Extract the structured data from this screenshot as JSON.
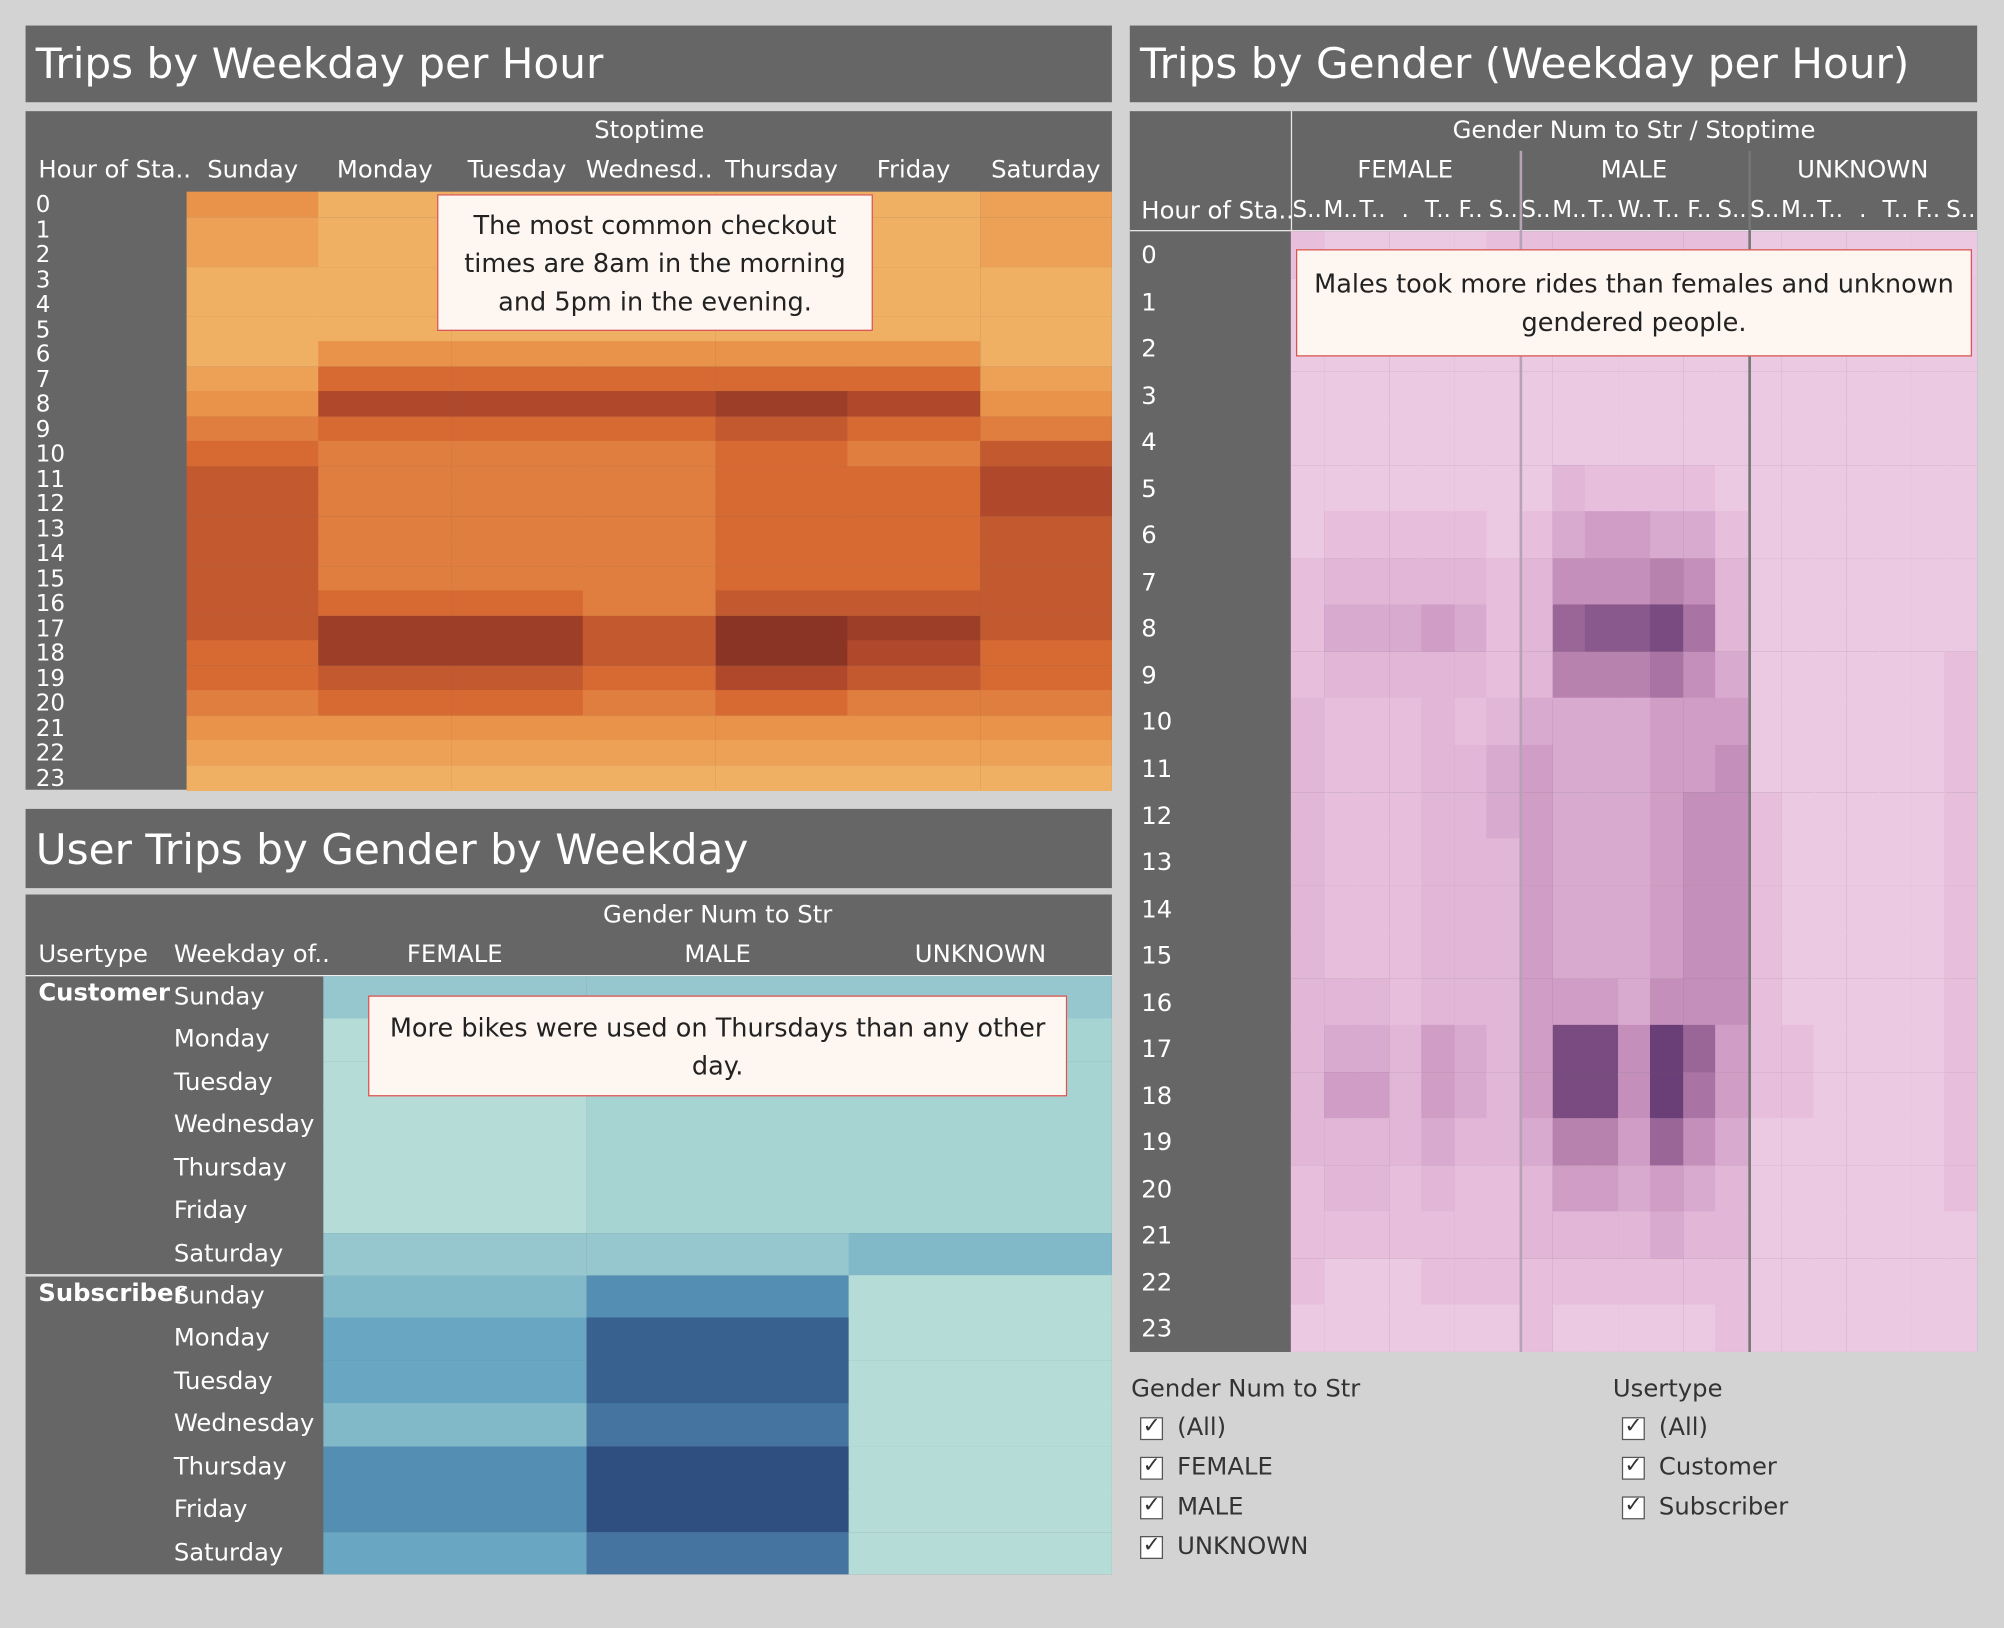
{
  "chart_data": [
    {
      "type": "heatmap",
      "title": "Trips by Weekday per Hour",
      "column_group_label": "Stoptime",
      "row_header": "Hour of Sta..",
      "columns": [
        "Sunday",
        "Monday",
        "Tuesday",
        "Wednesd..",
        "Thursday",
        "Friday",
        "Saturday"
      ],
      "rows": [
        "0",
        "1",
        "2",
        "3",
        "4",
        "5",
        "6",
        "7",
        "8",
        "9",
        "10",
        "11",
        "12",
        "13",
        "14",
        "15",
        "16",
        "17",
        "18",
        "19",
        "20",
        "21",
        "22",
        "23"
      ],
      "values": [
        [
          4,
          2,
          2,
          2,
          2,
          2,
          3
        ],
        [
          3,
          2,
          2,
          2,
          2,
          2,
          3
        ],
        [
          3,
          2,
          2,
          2,
          2,
          2,
          3
        ],
        [
          2,
          2,
          2,
          2,
          2,
          2,
          2
        ],
        [
          2,
          2,
          2,
          2,
          2,
          2,
          2
        ],
        [
          2,
          2,
          2,
          2,
          2,
          2,
          2
        ],
        [
          2,
          4,
          4,
          4,
          4,
          4,
          2
        ],
        [
          3,
          6,
          6,
          6,
          6,
          6,
          3
        ],
        [
          4,
          8,
          8,
          8,
          9,
          8,
          4
        ],
        [
          5,
          6,
          6,
          6,
          7,
          6,
          5
        ],
        [
          6,
          5,
          5,
          5,
          6,
          5,
          7
        ],
        [
          7,
          5,
          5,
          5,
          6,
          6,
          8
        ],
        [
          7,
          5,
          5,
          5,
          6,
          6,
          8
        ],
        [
          7,
          5,
          5,
          5,
          6,
          6,
          7
        ],
        [
          7,
          5,
          5,
          5,
          6,
          6,
          7
        ],
        [
          7,
          5,
          5,
          5,
          6,
          6,
          7
        ],
        [
          7,
          6,
          6,
          5,
          7,
          7,
          7
        ],
        [
          7,
          9,
          9,
          7,
          10,
          9,
          7
        ],
        [
          6,
          9,
          9,
          7,
          10,
          8,
          6
        ],
        [
          6,
          7,
          7,
          6,
          8,
          7,
          6
        ],
        [
          5,
          6,
          6,
          5,
          6,
          5,
          5
        ],
        [
          4,
          4,
          4,
          4,
          4,
          4,
          4
        ],
        [
          3,
          3,
          3,
          3,
          3,
          3,
          3
        ],
        [
          2,
          2,
          2,
          2,
          2,
          2,
          2
        ]
      ],
      "color_scale": [
        "#f7cd97",
        "#8b3a23"
      ],
      "annotation": "The most common checkout times are  8am in the morning and 5pm in the evening."
    },
    {
      "type": "heatmap",
      "title": "User Trips by Gender by Weekday",
      "column_group_label": "Gender Num to Str",
      "row_headers": [
        "Usertype",
        "Weekday of.."
      ],
      "columns": [
        "FEMALE",
        "MALE",
        "UNKNOWN"
      ],
      "groups": [
        {
          "name": "Customer",
          "rows": [
            "Sunday",
            "Monday",
            "Tuesday",
            "Wednesday",
            "Thursday",
            "Friday",
            "Saturday"
          ],
          "values": [
            [
              3,
              3,
              3
            ],
            [
              1,
              2,
              2
            ],
            [
              1,
              2,
              2
            ],
            [
              1,
              2,
              2
            ],
            [
              1,
              2,
              2
            ],
            [
              1,
              2,
              2
            ],
            [
              3,
              3,
              4
            ]
          ]
        },
        {
          "name": "Subscriber",
          "rows": [
            "Sunday",
            "Monday",
            "Tuesday",
            "Wednesday",
            "Thursday",
            "Friday",
            "Saturday"
          ],
          "values": [
            [
              4,
              6,
              1
            ],
            [
              5,
              8,
              1
            ],
            [
              5,
              8,
              1
            ],
            [
              4,
              7,
              1
            ],
            [
              6,
              9,
              1
            ],
            [
              6,
              9,
              1
            ],
            [
              5,
              7,
              1
            ]
          ]
        }
      ],
      "color_scale": [
        "#c5e4da",
        "#2f5184"
      ],
      "annotation": "More bikes were used on Thursdays than any other day."
    },
    {
      "type": "heatmap",
      "title": "Trips by Gender (Weekday per Hour)",
      "column_group_label": "Gender Num to Str / Stoptime",
      "row_header": "Hour of Sta..",
      "genders": [
        "FEMALE",
        "MALE",
        "UNKNOWN"
      ],
      "day_labels": [
        "S..",
        "M..",
        "T..",
        ".",
        "T..",
        "F..",
        "S..",
        "S..",
        "M..",
        "T..",
        "W..",
        "T..",
        "F..",
        "S..",
        "S..",
        "M..",
        "T..",
        ".",
        "T..",
        "F..",
        "S.."
      ],
      "rows": [
        "0",
        "1",
        "2",
        "3",
        "4",
        "5",
        "6",
        "7",
        "8",
        "9",
        "10",
        "11",
        "12",
        "13",
        "14",
        "15",
        "16",
        "17",
        "18",
        "19",
        "20",
        "21",
        "22",
        "23"
      ],
      "values_female": [
        [
          1,
          0,
          0,
          0,
          0,
          0,
          1
        ],
        [
          0,
          0,
          0,
          0,
          0,
          0,
          1
        ],
        [
          0,
          0,
          0,
          0,
          0,
          0,
          0
        ],
        [
          0,
          0,
          0,
          0,
          0,
          0,
          0
        ],
        [
          0,
          0,
          0,
          0,
          0,
          0,
          0
        ],
        [
          0,
          0,
          0,
          0,
          0,
          0,
          0
        ],
        [
          0,
          1,
          1,
          1,
          1,
          1,
          0
        ],
        [
          1,
          2,
          2,
          2,
          2,
          2,
          1
        ],
        [
          1,
          3,
          3,
          3,
          4,
          3,
          1
        ],
        [
          1,
          2,
          2,
          2,
          2,
          2,
          1
        ],
        [
          2,
          1,
          1,
          1,
          2,
          1,
          2
        ],
        [
          2,
          1,
          1,
          1,
          2,
          2,
          3
        ],
        [
          2,
          1,
          1,
          1,
          2,
          2,
          3
        ],
        [
          2,
          1,
          1,
          1,
          2,
          2,
          2
        ],
        [
          2,
          1,
          1,
          1,
          2,
          2,
          2
        ],
        [
          2,
          1,
          1,
          1,
          2,
          2,
          2
        ],
        [
          2,
          2,
          2,
          1,
          2,
          2,
          2
        ],
        [
          2,
          3,
          3,
          2,
          4,
          3,
          2
        ],
        [
          2,
          4,
          4,
          2,
          4,
          3,
          2
        ],
        [
          2,
          2,
          2,
          2,
          3,
          2,
          2
        ],
        [
          1,
          2,
          2,
          1,
          2,
          1,
          1
        ],
        [
          1,
          1,
          1,
          1,
          1,
          1,
          1
        ],
        [
          1,
          0,
          0,
          0,
          1,
          1,
          1
        ],
        [
          0,
          0,
          0,
          0,
          0,
          0,
          0
        ]
      ],
      "values_male": [
        [
          1,
          1,
          1,
          1,
          1,
          1,
          1
        ],
        [
          1,
          0,
          0,
          0,
          0,
          0,
          1
        ],
        [
          0,
          0,
          0,
          0,
          0,
          0,
          0
        ],
        [
          0,
          0,
          0,
          0,
          0,
          0,
          0
        ],
        [
          0,
          0,
          0,
          0,
          0,
          0,
          0
        ],
        [
          0,
          2,
          1,
          1,
          1,
          1,
          0
        ],
        [
          1,
          3,
          4,
          4,
          3,
          3,
          1
        ],
        [
          2,
          5,
          5,
          5,
          6,
          5,
          2
        ],
        [
          2,
          8,
          9,
          9,
          10,
          7,
          2
        ],
        [
          2,
          6,
          6,
          6,
          7,
          5,
          3
        ],
        [
          3,
          3,
          3,
          3,
          4,
          4,
          4
        ],
        [
          4,
          3,
          3,
          3,
          4,
          4,
          5
        ],
        [
          4,
          3,
          3,
          3,
          4,
          5,
          5
        ],
        [
          4,
          3,
          3,
          3,
          4,
          5,
          5
        ],
        [
          4,
          3,
          3,
          3,
          4,
          5,
          5
        ],
        [
          4,
          3,
          3,
          3,
          4,
          5,
          5
        ],
        [
          4,
          4,
          4,
          3,
          5,
          5,
          5
        ],
        [
          4,
          10,
          10,
          5,
          11,
          8,
          4
        ],
        [
          4,
          10,
          10,
          5,
          11,
          7,
          4
        ],
        [
          3,
          6,
          6,
          4,
          8,
          5,
          3
        ],
        [
          2,
          4,
          4,
          3,
          4,
          3,
          2
        ],
        [
          2,
          2,
          2,
          2,
          3,
          2,
          2
        ],
        [
          1,
          1,
          1,
          1,
          1,
          1,
          1
        ],
        [
          1,
          0,
          0,
          0,
          0,
          0,
          1
        ]
      ],
      "values_unknown": [
        [
          0,
          0,
          0,
          0,
          0,
          0,
          0
        ],
        [
          0,
          0,
          0,
          0,
          0,
          0,
          0
        ],
        [
          0,
          0,
          0,
          0,
          0,
          0,
          0
        ],
        [
          0,
          0,
          0,
          0,
          0,
          0,
          0
        ],
        [
          0,
          0,
          0,
          0,
          0,
          0,
          0
        ],
        [
          0,
          0,
          0,
          0,
          0,
          0,
          0
        ],
        [
          0,
          0,
          0,
          0,
          0,
          0,
          0
        ],
        [
          0,
          0,
          0,
          0,
          0,
          0,
          0
        ],
        [
          0,
          0,
          0,
          0,
          0,
          0,
          0
        ],
        [
          0,
          0,
          0,
          0,
          0,
          0,
          1
        ],
        [
          0,
          0,
          0,
          0,
          0,
          0,
          1
        ],
        [
          0,
          0,
          0,
          0,
          0,
          0,
          1
        ],
        [
          1,
          0,
          0,
          0,
          0,
          0,
          1
        ],
        [
          1,
          0,
          0,
          0,
          0,
          0,
          1
        ],
        [
          1,
          0,
          0,
          0,
          0,
          0,
          1
        ],
        [
          1,
          0,
          0,
          0,
          0,
          0,
          1
        ],
        [
          1,
          0,
          0,
          0,
          0,
          0,
          1
        ],
        [
          1,
          1,
          0,
          0,
          0,
          0,
          1
        ],
        [
          1,
          1,
          0,
          0,
          0,
          0,
          1
        ],
        [
          0,
          0,
          0,
          0,
          0,
          0,
          1
        ],
        [
          0,
          0,
          0,
          0,
          0,
          0,
          1
        ],
        [
          0,
          0,
          0,
          0,
          0,
          0,
          0
        ],
        [
          0,
          0,
          0,
          0,
          0,
          0,
          0
        ],
        [
          0,
          0,
          0,
          0,
          0,
          0,
          0
        ]
      ],
      "color_scale": [
        "#ebc9e2",
        "#6e3f79"
      ],
      "annotation": "Males took more rides than females and unknown gendered people."
    }
  ],
  "filters": {
    "gender": {
      "title": "Gender Num to Str",
      "items": [
        "(All)",
        "FEMALE",
        "MALE",
        "UNKNOWN"
      ]
    },
    "usertype": {
      "title": "Usertype",
      "items": [
        "(All)",
        "Customer",
        "Subscriber"
      ]
    }
  }
}
